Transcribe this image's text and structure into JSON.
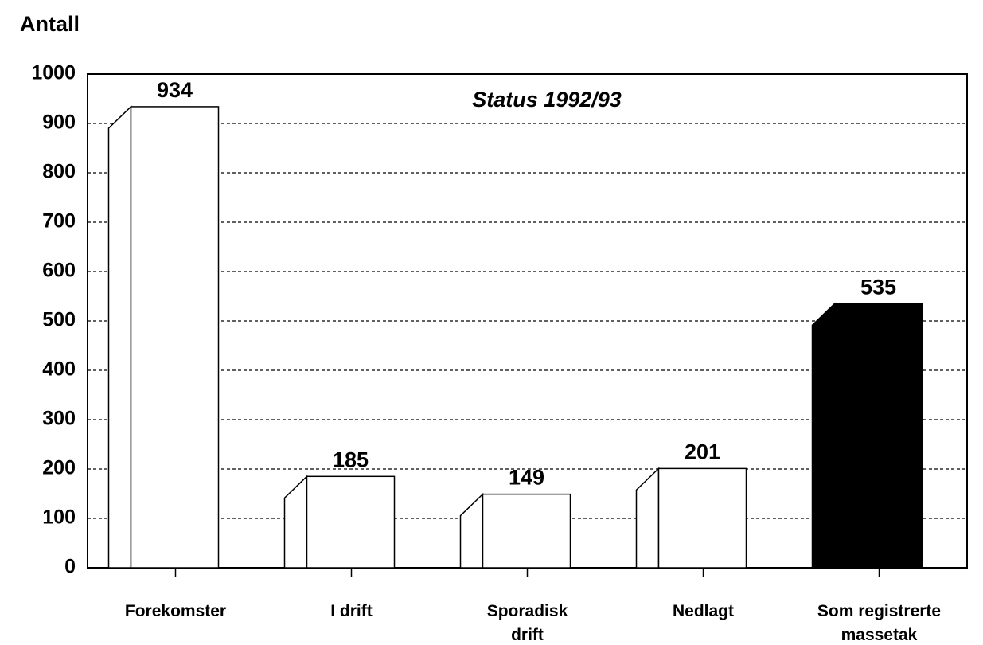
{
  "chart_data": {
    "type": "bar",
    "title": "Status 1992/93",
    "y_label": "Antall",
    "categories": [
      "Forekomster",
      "I drift",
      "Sporadisk\ndrift",
      "Nedlagt",
      "Som registrerte\nmassetak"
    ],
    "values": [
      934,
      185,
      149,
      201,
      535
    ],
    "colors": [
      "#ffffff",
      "#ffffff",
      "#ffffff",
      "#ffffff",
      "#000000"
    ],
    "ylim": [
      0,
      1000
    ],
    "yticks": [
      0,
      100,
      200,
      300,
      400,
      500,
      600,
      700,
      800,
      900,
      1000
    ],
    "grid": true
  }
}
